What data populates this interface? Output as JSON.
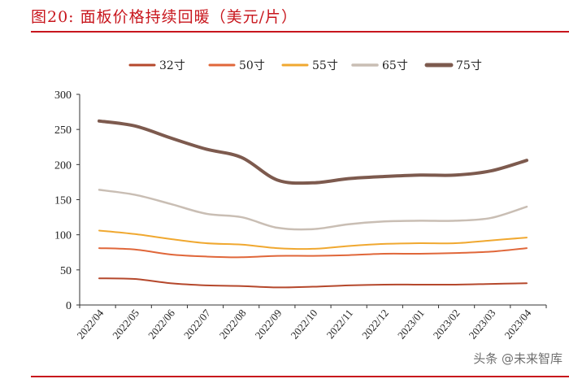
{
  "header": {
    "title": "图20:   面板价格持续回暖（美元/片）"
  },
  "watermark": "头条 @未来智库",
  "chart_data": {
    "type": "line",
    "title": "面板价格持续回暖（美元/片）",
    "categories": [
      "2022/04",
      "2022/05",
      "2022/06",
      "2022/07",
      "2022/08",
      "2022/09",
      "2022/10",
      "2022/11",
      "2022/12",
      "2023/01",
      "2023/02",
      "2023/03",
      "2023/04"
    ],
    "ylim": [
      0,
      300
    ],
    "yticks": [
      0,
      50,
      100,
      150,
      200,
      250,
      300
    ],
    "grid": false,
    "legend_position": "top",
    "series": [
      {
        "name": "32寸",
        "color": "#b5482c",
        "width": 2,
        "values": [
          38,
          37,
          31,
          28,
          27,
          25,
          26,
          28,
          29,
          29,
          29,
          30,
          31
        ]
      },
      {
        "name": "50寸",
        "color": "#e0673a",
        "width": 2,
        "values": [
          81,
          79,
          72,
          69,
          68,
          70,
          70,
          71,
          73,
          73,
          74,
          76,
          81
        ]
      },
      {
        "name": "55寸",
        "color": "#f0a830",
        "width": 2,
        "values": [
          106,
          101,
          94,
          88,
          86,
          81,
          80,
          84,
          87,
          88,
          88,
          92,
          96
        ]
      },
      {
        "name": "65寸",
        "color": "#c9beb4",
        "width": 2.5,
        "values": [
          164,
          157,
          144,
          130,
          125,
          110,
          108,
          115,
          119,
          120,
          120,
          124,
          140
        ]
      },
      {
        "name": "75寸",
        "color": "#7d5a4e",
        "width": 4,
        "values": [
          262,
          255,
          238,
          222,
          210,
          178,
          174,
          180,
          183,
          185,
          185,
          191,
          206
        ]
      }
    ]
  }
}
